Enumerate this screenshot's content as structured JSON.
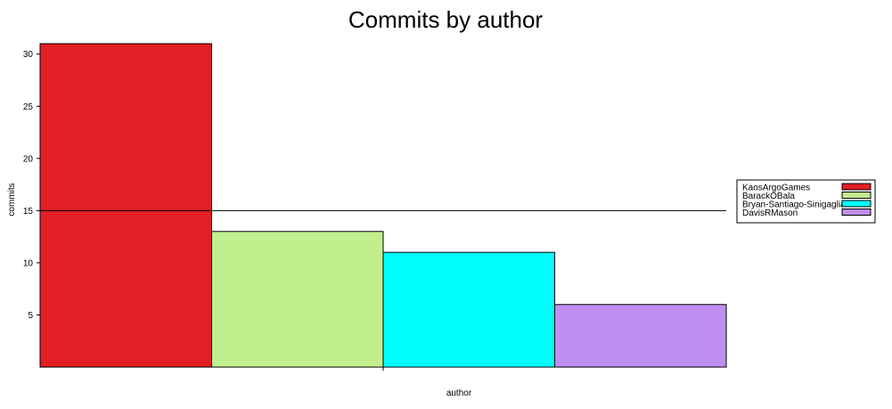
{
  "chart_data": {
    "type": "bar",
    "title": "Commits by author",
    "xlabel": "author",
    "ylabel": "commits",
    "categories": [
      "KaosArgoGames",
      "BarackOBala",
      "Bryan-Santiago-Sinigaglia",
      "DavisRMason"
    ],
    "values": [
      31,
      13,
      11,
      6
    ],
    "colors": [
      "#e31e24",
      "#c2ef8e",
      "#00ffff",
      "#bf8ef1"
    ],
    "yticks": [
      5,
      10,
      15,
      20,
      25,
      30
    ],
    "ylim": [
      0,
      31
    ],
    "reference_line": 15,
    "legend": {
      "position": "right",
      "entries": [
        "KaosArgoGames",
        "BarackOBala",
        "Bryan-Santiago-Sinigaglia",
        "DavisRMason"
      ]
    },
    "grid": false
  }
}
